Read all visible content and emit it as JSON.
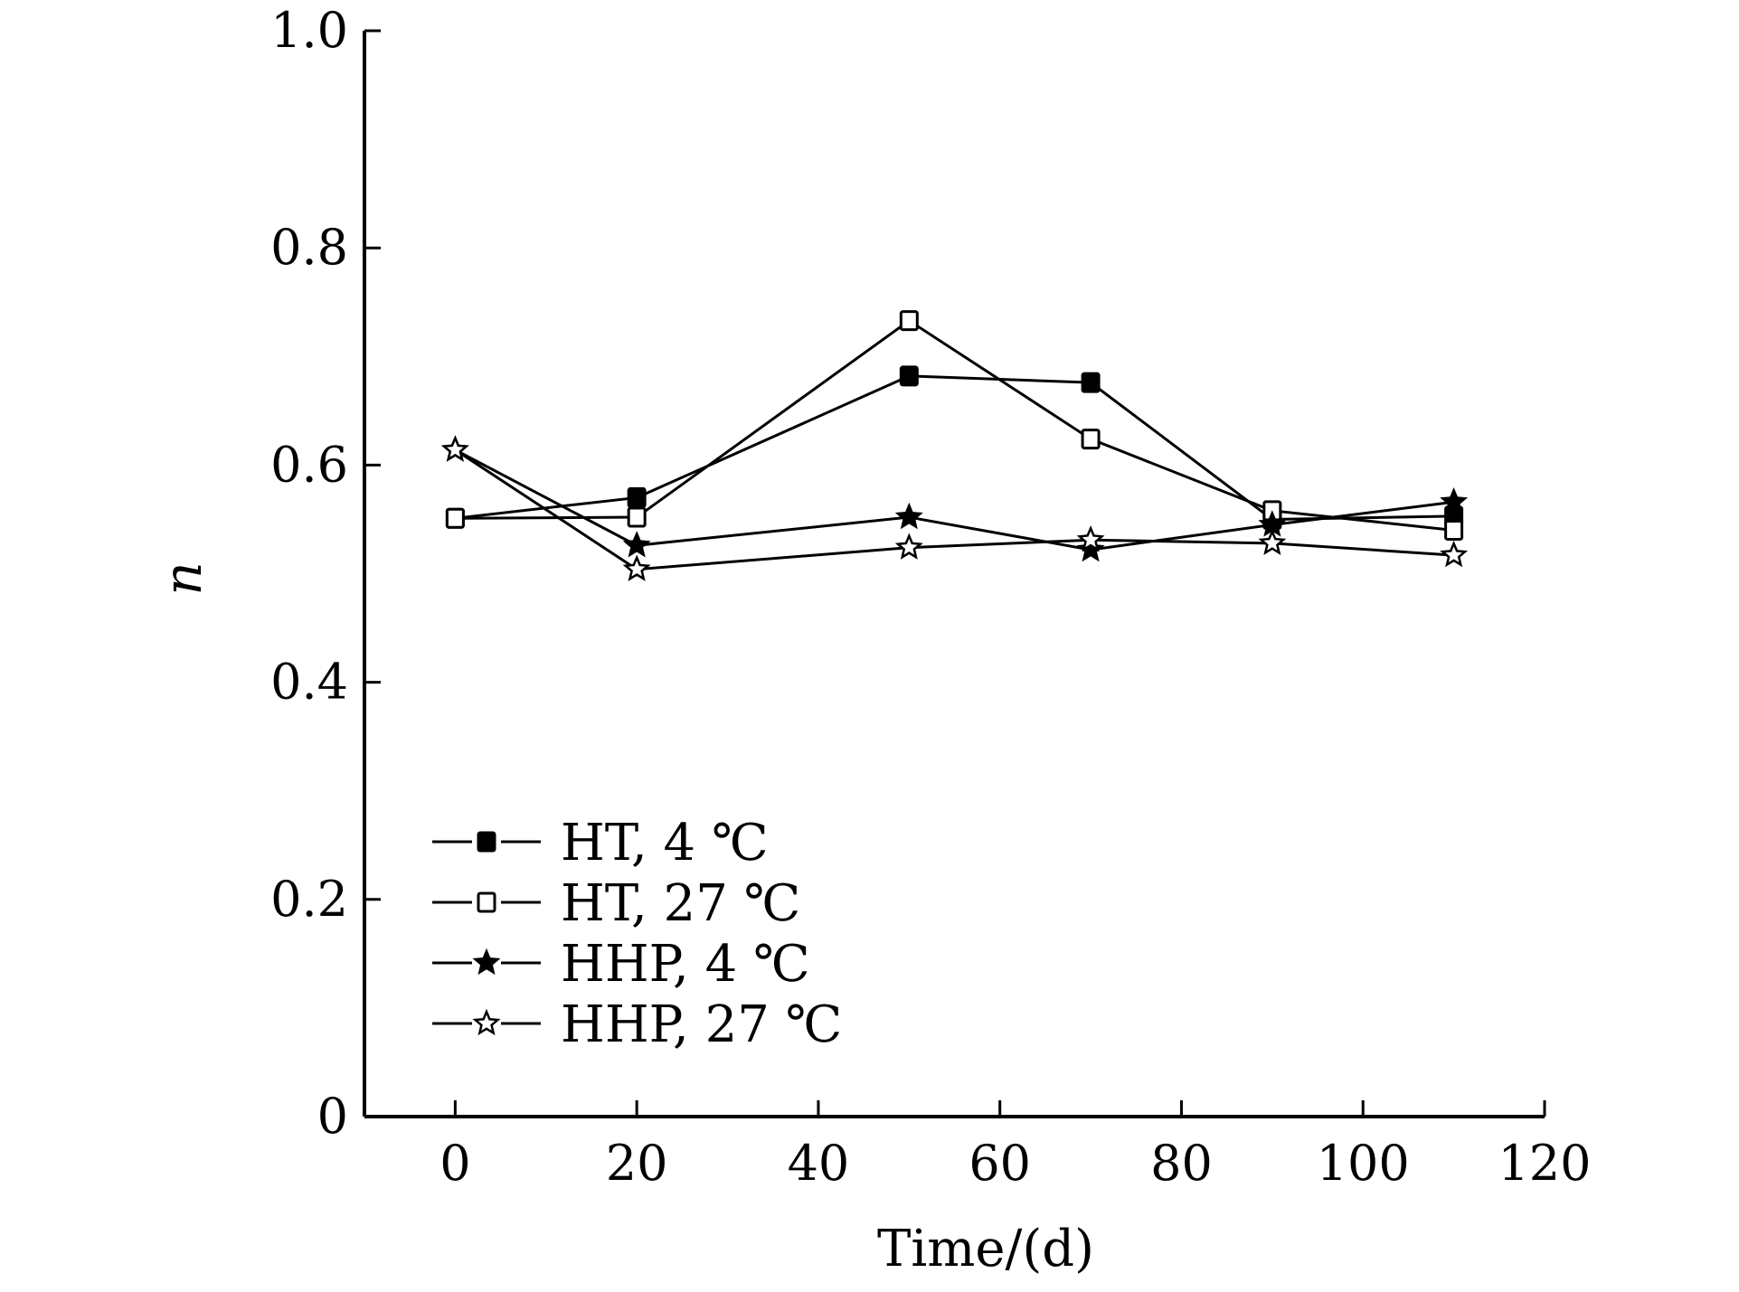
{
  "chart_data": {
    "type": "line",
    "title": "",
    "xlabel": "Time/(d)",
    "ylabel": "n",
    "xlim": [
      -10,
      120
    ],
    "ylim": [
      0,
      1.0
    ],
    "xticks": [
      0,
      20,
      40,
      60,
      80,
      100,
      120
    ],
    "xtick_labels": [
      "0",
      "20",
      "40",
      "60",
      "80",
      "100",
      "120"
    ],
    "yticks": [
      0,
      0.2,
      0.4,
      0.6,
      0.8,
      1.0
    ],
    "ytick_labels": [
      "0",
      "0.2",
      "0.4",
      "0.6",
      "0.8",
      "1.0"
    ],
    "grid": false,
    "legend_position": "bottom-left",
    "x": [
      0,
      20,
      50,
      70,
      90,
      110
    ],
    "series": [
      {
        "name": "HT, 4 ℃",
        "marker": "filled-square",
        "x": [
          0,
          20,
          50,
          70,
          90,
          110
        ],
        "values": [
          0.551,
          0.57,
          0.682,
          0.676,
          0.55,
          0.553
        ]
      },
      {
        "name": "HT, 27 ℃",
        "marker": "open-square",
        "x": [
          0,
          20,
          50,
          70,
          90,
          110
        ],
        "values": [
          0.551,
          0.552,
          0.733,
          0.624,
          0.558,
          0.54
        ]
      },
      {
        "name": "HHP, 4 ℃",
        "marker": "filled-star",
        "x": [
          0,
          20,
          50,
          70,
          90,
          110
        ],
        "values": [
          0.614,
          0.526,
          0.552,
          0.522,
          0.545,
          0.566
        ]
      },
      {
        "name": "HHP, 27 ℃",
        "marker": "open-star",
        "x": [
          0,
          20,
          50,
          70,
          90,
          110
        ],
        "values": [
          0.614,
          0.504,
          0.524,
          0.531,
          0.528,
          0.517
        ]
      }
    ]
  }
}
